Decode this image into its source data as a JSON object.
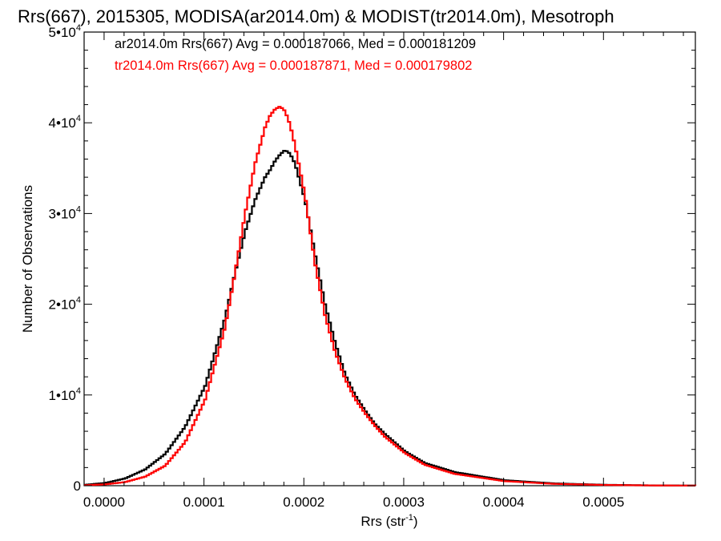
{
  "chart_data": {
    "type": "line",
    "title": "Rrs(667), 2015305, MODISA(ar2014.0m) & MODIST(tr2014.0m), Mesotroph",
    "xlabel": {
      "base": "Rrs (str",
      "sup": "-1",
      "close": ")"
    },
    "ylabel": "Number of Observations",
    "xlim": [
      -2e-05,
      0.000592
    ],
    "ylim": [
      0,
      50000
    ],
    "x_ticks": [
      {
        "value": 0.0,
        "label": "0.0000"
      },
      {
        "value": 0.0001,
        "label": "0.0001"
      },
      {
        "value": 0.0002,
        "label": "0.0002"
      },
      {
        "value": 0.0003,
        "label": "0.0003"
      },
      {
        "value": 0.0004,
        "label": "0.0004"
      },
      {
        "value": 0.0005,
        "label": "0.0005"
      }
    ],
    "y_ticks": [
      {
        "value": 0,
        "label": "0",
        "mantissa": "0",
        "exp": ""
      },
      {
        "value": 10000,
        "label": "1•10^4",
        "mantissa": "1•10",
        "exp": "4"
      },
      {
        "value": 20000,
        "label": "2•10^4",
        "mantissa": "2•10",
        "exp": "4"
      },
      {
        "value": 30000,
        "label": "3•10^4",
        "mantissa": "3•10",
        "exp": "4"
      },
      {
        "value": 40000,
        "label": "4•10^4",
        "mantissa": "4•10",
        "exp": "4"
      },
      {
        "value": 50000,
        "label": "5•10^4",
        "mantissa": "5•10",
        "exp": "4"
      }
    ],
    "grid": false,
    "legend_placement": "top-left",
    "series": [
      {
        "label": "ar2014.0m Rrs(667) Avg = 0.000187066, Med = 0.000181209",
        "color": "#000000",
        "x": [
          -2e-05,
          0.0,
          2e-05,
          4e-05,
          6e-05,
          8e-05,
          0.0001,
          0.00012,
          0.00013,
          0.00014,
          0.00015,
          0.00016,
          0.000165,
          0.00017,
          0.000175,
          0.00018,
          0.000185,
          0.00019,
          0.0002,
          0.00021,
          0.00022,
          0.00023,
          0.00024,
          0.00025,
          0.00026,
          0.00027,
          0.00028,
          0.0003,
          0.00032,
          0.00035,
          0.0004,
          0.00045,
          0.0005,
          0.00055,
          0.000592
        ],
        "y": [
          100,
          300,
          800,
          1800,
          3500,
          6500,
          11000,
          18500,
          23500,
          28000,
          31500,
          34000,
          34800,
          35800,
          36500,
          37000,
          36600,
          35500,
          31500,
          25500,
          20000,
          15800,
          12300,
          10000,
          8300,
          6800,
          5700,
          3800,
          2500,
          1500,
          600,
          250,
          100,
          30,
          10
        ]
      },
      {
        "label": "tr2014.0m Rrs(667) Avg = 0.000187871, Med = 0.000179802",
        "color": "#ff0000",
        "x": [
          -2e-05,
          0.0,
          2e-05,
          4e-05,
          6e-05,
          8e-05,
          0.0001,
          0.00012,
          0.00013,
          0.00014,
          0.00015,
          0.00016,
          0.000165,
          0.00017,
          0.000175,
          0.00018,
          0.000185,
          0.00019,
          0.0002,
          0.00021,
          0.00022,
          0.00023,
          0.00024,
          0.00025,
          0.00026,
          0.00027,
          0.00028,
          0.0003,
          0.00032,
          0.00035,
          0.0004,
          0.00045,
          0.0005,
          0.00055,
          0.000592
        ],
        "y": [
          50,
          150,
          400,
          1000,
          2200,
          4800,
          9500,
          17500,
          23500,
          30000,
          35500,
          39500,
          40800,
          41500,
          41800,
          41300,
          39800,
          37500,
          32000,
          24500,
          18800,
          14800,
          11800,
          9600,
          8000,
          6600,
          5400,
          3600,
          2300,
          1300,
          500,
          200,
          80,
          25,
          10
        ]
      }
    ]
  }
}
